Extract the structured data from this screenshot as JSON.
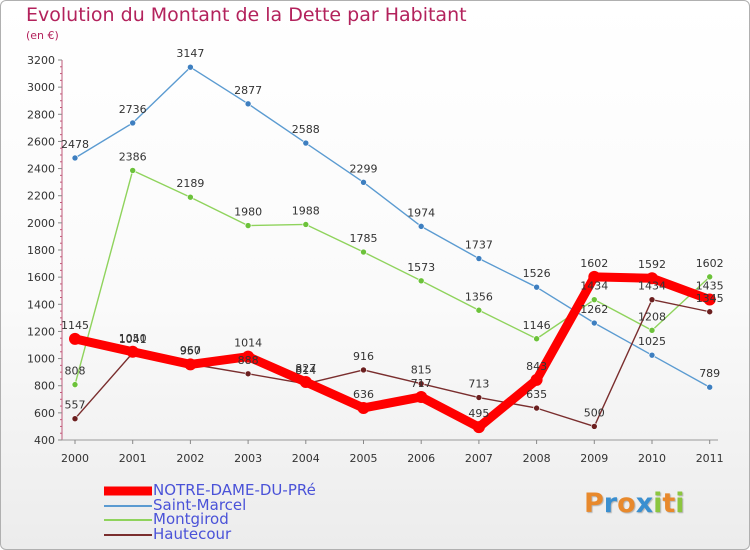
{
  "chart_data": {
    "type": "line",
    "title": "Evolution du Montant de la Dette par Habitant",
    "subtitle": "(en €)",
    "categories": [
      "2000",
      "2001",
      "2002",
      "2003",
      "2004",
      "2005",
      "2006",
      "2007",
      "2008",
      "2009",
      "2010",
      "2011"
    ],
    "ylim": [
      400,
      3200
    ],
    "yticks": [
      400,
      600,
      800,
      1000,
      1200,
      1400,
      1600,
      1800,
      2000,
      2200,
      2400,
      2600,
      2800,
      3000,
      3200
    ],
    "grid": false,
    "legend_position": "bottom-left",
    "series": [
      {
        "name": "Saint-Marcel",
        "color": "#5b9bd1",
        "marker": "#3e7fc0",
        "values": [
          2478,
          2736,
          3147,
          2877,
          2588,
          2299,
          1974,
          1737,
          1526,
          1262,
          1025,
          789
        ]
      },
      {
        "name": "Montgirod",
        "color": "#8fd35c",
        "marker": "#6cc23a",
        "values": [
          808,
          2386,
          2189,
          1980,
          1988,
          1785,
          1573,
          1356,
          1146,
          1434,
          1208,
          1602
        ]
      },
      {
        "name": "Hautecour",
        "color": "#7a2e2e",
        "marker": "#6b1f1f",
        "values": [
          557,
          1041,
          960,
          888,
          814,
          916,
          815,
          713,
          635,
          500,
          1434,
          1345
        ]
      },
      {
        "name": "NOTRE-DAME-DU-PRé",
        "color": "#ff0000",
        "marker": "#ff0000",
        "values": [
          1145,
          1050,
          957,
          1014,
          827,
          636,
          717,
          495,
          843,
          1602,
          1592,
          1435
        ]
      }
    ]
  },
  "logo": {
    "letters": [
      "P",
      "r",
      "o",
      "x",
      "i",
      "t",
      "i"
    ],
    "colors": [
      "#e8892c",
      "#3a8fd0",
      "#e8892c",
      "#3a8fd0",
      "#8cc63f",
      "#e8892c",
      "#8cc63f"
    ]
  }
}
